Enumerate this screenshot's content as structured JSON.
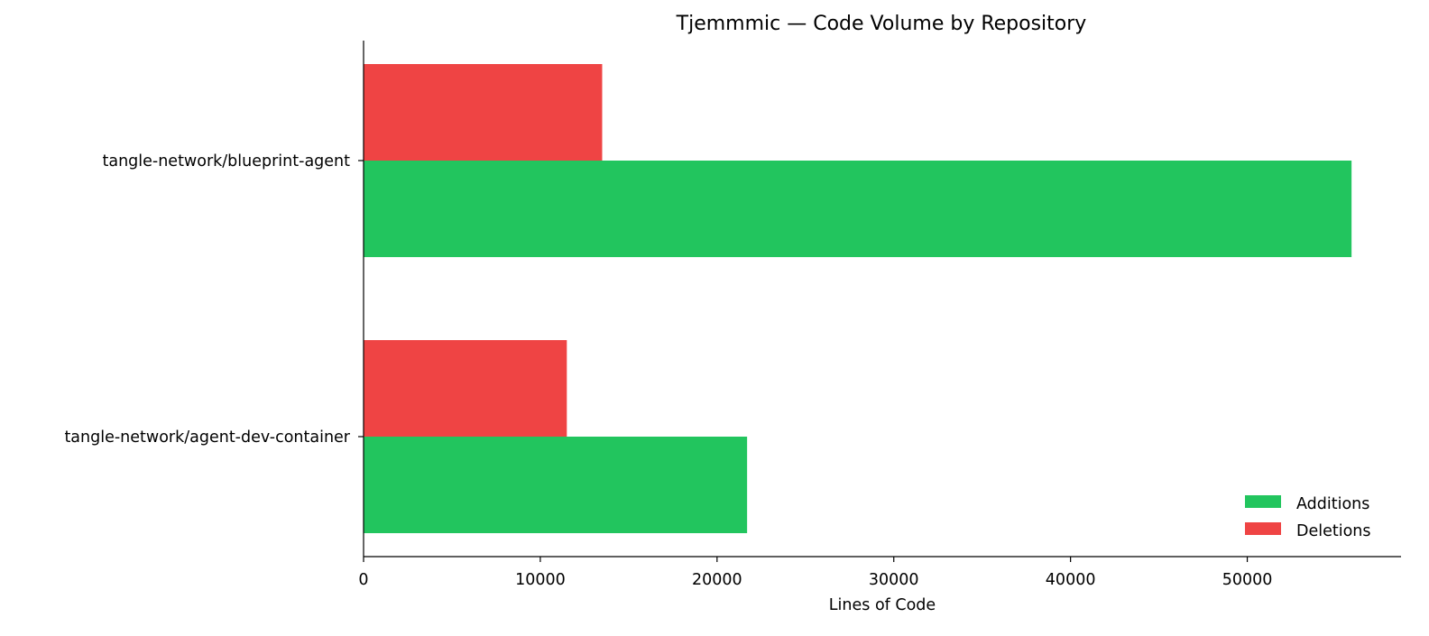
{
  "chart_data": {
    "type": "bar",
    "orientation": "horizontal",
    "title": "Tjemmmic — Code Volume by Repository",
    "xlabel": "Lines of Code",
    "ylabel": "",
    "categories": [
      "tangle-network/blueprint-agent",
      "tangle-network/agent-dev-container"
    ],
    "series": [
      {
        "name": "Additions",
        "color": "#22c55e",
        "values": [
          55900,
          21700
        ]
      },
      {
        "name": "Deletions",
        "color": "#ef4444",
        "values": [
          13500,
          11500
        ]
      }
    ],
    "xlim": [
      0,
      58700
    ],
    "x_ticks": [
      0,
      10000,
      20000,
      30000,
      40000,
      50000
    ],
    "x_tick_labels": [
      "0",
      "10000",
      "20000",
      "30000",
      "40000",
      "50000"
    ],
    "grid": false,
    "legend_position": "lower-right"
  }
}
